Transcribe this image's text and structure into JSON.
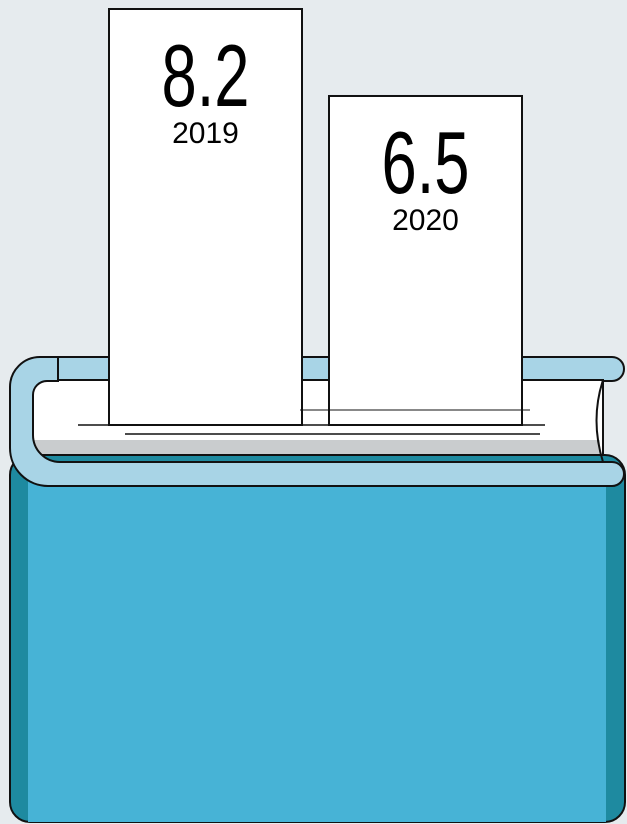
{
  "chart_data": {
    "type": "bar",
    "categories": [
      "2019",
      "2020"
    ],
    "values": [
      8.2,
      6.5
    ],
    "color": "#ffffff"
  }
}
